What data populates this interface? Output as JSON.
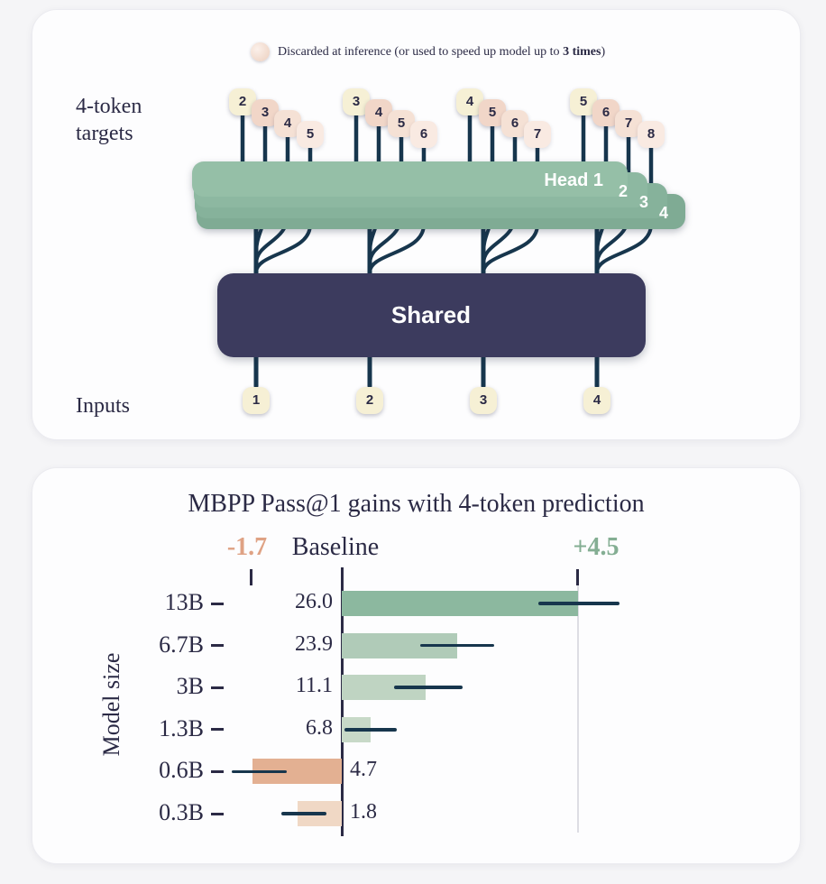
{
  "colors": {
    "line": "#17364d",
    "navy_text": "#2b2a45",
    "salmon_accent": "#dfa284",
    "green_accent": "#84ae93",
    "shared_box": "#3c3b5e",
    "head_green": "#95bfa7",
    "cream_token": "#f6f0d5",
    "pink_token": "#f1d6c8"
  },
  "diagram": {
    "legend": {
      "prefix": "Discarded at inference (or used to speed up model up to ",
      "bold": "3 times",
      "suffix": ")"
    },
    "targets_label_line1": "4-token",
    "targets_label_line2": "targets",
    "inputs_label": "Inputs",
    "shared_label": "Shared",
    "head_labels": [
      "Head 1",
      "2",
      "3",
      "4"
    ],
    "target_groups": [
      [
        "2",
        "3",
        "4",
        "5"
      ],
      [
        "3",
        "4",
        "5",
        "6"
      ],
      [
        "4",
        "5",
        "6",
        "7"
      ],
      [
        "5",
        "6",
        "7",
        "8"
      ]
    ],
    "inputs": [
      "1",
      "2",
      "3",
      "4"
    ]
  },
  "chart_data": {
    "type": "bar",
    "orientation": "horizontal",
    "title": "MBPP Pass@1  gains with 4-token prediction",
    "ylabel": "Model size",
    "categories": [
      "13B",
      "6.7B",
      "3B",
      "1.3B",
      "0.6B",
      "0.3B"
    ],
    "gains": [
      4.5,
      2.2,
      1.6,
      0.55,
      -1.7,
      -0.85
    ],
    "baseline_values": [
      26.0,
      23.9,
      11.1,
      6.8,
      4.7,
      1.8
    ],
    "baseline_labels": [
      "26.0",
      "23.9",
      "11.1",
      "6.8",
      "4.7",
      "1.8"
    ],
    "error_low": [
      3.75,
      1.5,
      1.0,
      0.05,
      -2.1,
      -1.15
    ],
    "error_high": [
      5.3,
      2.9,
      2.3,
      1.05,
      -1.05,
      -0.3
    ],
    "annotations": {
      "min_label": "-1.7",
      "baseline_label": "Baseline",
      "max_label": "+4.5"
    },
    "bar_colors": [
      "#8cb89f",
      "#b0cbb8",
      "#bfd4c2",
      "#c8d9c8",
      "#e3b092",
      "#f0d8c5"
    ],
    "xlim": [
      -2.6,
      5.6
    ],
    "grid": false,
    "legend_position": "none"
  }
}
